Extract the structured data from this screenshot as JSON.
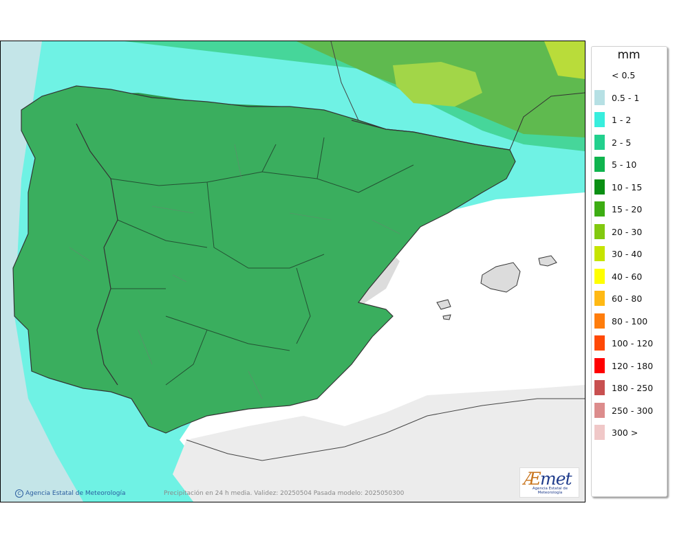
{
  "legend": {
    "title": "mm",
    "items": [
      {
        "label": "< 0.5",
        "color": "#ffffff"
      },
      {
        "label": "0.5 - 1",
        "color": "#b6e0e4"
      },
      {
        "label": "1 - 2",
        "color": "#38eedd"
      },
      {
        "label": "2 - 5",
        "color": "#22d08d"
      },
      {
        "label": "5 - 10",
        "color": "#0fb44e"
      },
      {
        "label": "10 - 15",
        "color": "#0a8f13"
      },
      {
        "label": "15 - 20",
        "color": "#3dad13"
      },
      {
        "label": "20 - 30",
        "color": "#82c90f"
      },
      {
        "label": "30 - 40",
        "color": "#c6e400"
      },
      {
        "label": "40 - 60",
        "color": "#ffff00"
      },
      {
        "label": "60 - 80",
        "color": "#ffb914"
      },
      {
        "label": "80 - 100",
        "color": "#ff7d0c"
      },
      {
        "label": "100 - 120",
        "color": "#ff4906"
      },
      {
        "label": "120 - 180",
        "color": "#ff0000"
      },
      {
        "label": "180 - 250",
        "color": "#c85050"
      },
      {
        "label": "250 - 300",
        "color": "#dc8c8c"
      },
      {
        "label": "300 >",
        "color": "#f0c8c8"
      }
    ]
  },
  "footer": {
    "copyright": "Agencia Estatal de Meteorología",
    "caption": "Precipitación en 24 h media. Validez: 20250504 Pasada modelo: 2025050300"
  },
  "logo": {
    "wordmark_a": "Æ",
    "wordmark_rest": "met",
    "subtitle": "Agencia Estatal de Meteorología"
  },
  "colors": {
    "sea_light": "#c4e5e8",
    "sea_cyan": "#6ff2e4",
    "land_mid": "#46d69a",
    "land_green": "#3aae5e",
    "dry_land": "#dcdcdc",
    "no_data": "#ececec"
  }
}
